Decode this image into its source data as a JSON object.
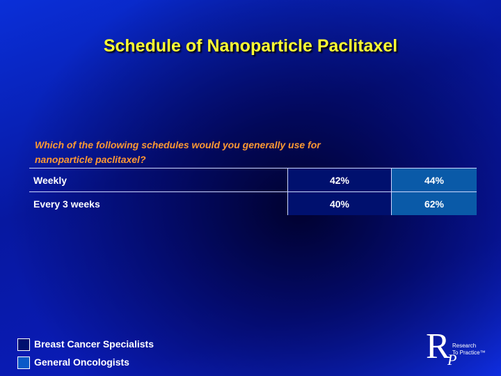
{
  "header": {
    "title": "Schedule of Nanoparticle Paclitaxel"
  },
  "question": {
    "lines": [
      "Which of the following schedules would you generally use for",
      "nanoparticle paclitaxel?"
    ]
  },
  "table": {
    "rows": [
      [
        "Weekly",
        "42%",
        "44%"
      ],
      [
        "Every 3 weeks",
        "40%",
        "62%"
      ]
    ]
  },
  "legend": {
    "items": [
      "Breast Cancer Specialists",
      "General Oncologists"
    ]
  },
  "logo": {
    "letter_r": "R",
    "letter_p": "P",
    "line1": "Research",
    "line2": "To Practice™"
  }
}
